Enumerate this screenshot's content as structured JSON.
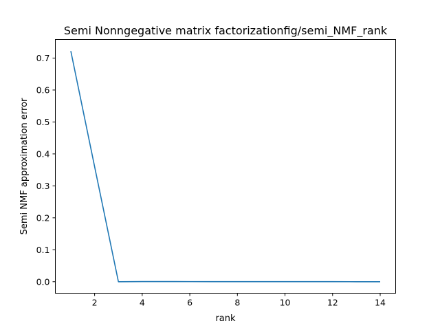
{
  "chart_data": {
    "type": "line",
    "title": "Semi Nonngegative matrix factorizationfig/semi_NMF_rank",
    "xlabel": "rank",
    "ylabel": "Semi NMF approximation error",
    "xlim": [
      0.35,
      14.65
    ],
    "ylim": [
      -0.036,
      0.758
    ],
    "xticks": [
      2,
      4,
      6,
      8,
      10,
      12,
      14
    ],
    "yticks": [
      0.0,
      0.1,
      0.2,
      0.3,
      0.4,
      0.5,
      0.6,
      0.7
    ],
    "xtick_labels": [
      "2",
      "4",
      "6",
      "8",
      "10",
      "12",
      "14"
    ],
    "ytick_labels": [
      "0.0",
      "0.1",
      "0.2",
      "0.3",
      "0.4",
      "0.5",
      "0.6",
      "0.7"
    ],
    "grid": false,
    "series": [
      {
        "color": "#1f77b4",
        "x": [
          1,
          2,
          3,
          4,
          5,
          6,
          7,
          8,
          9,
          10,
          11,
          12,
          13,
          14
        ],
        "y": [
          0.722,
          0.36,
          0.0,
          0.0005,
          0.0004,
          0.0003,
          0.0002,
          0.0002,
          0.0001,
          0.0001,
          0.0001,
          0.0001,
          0.0,
          0.0
        ]
      }
    ]
  }
}
